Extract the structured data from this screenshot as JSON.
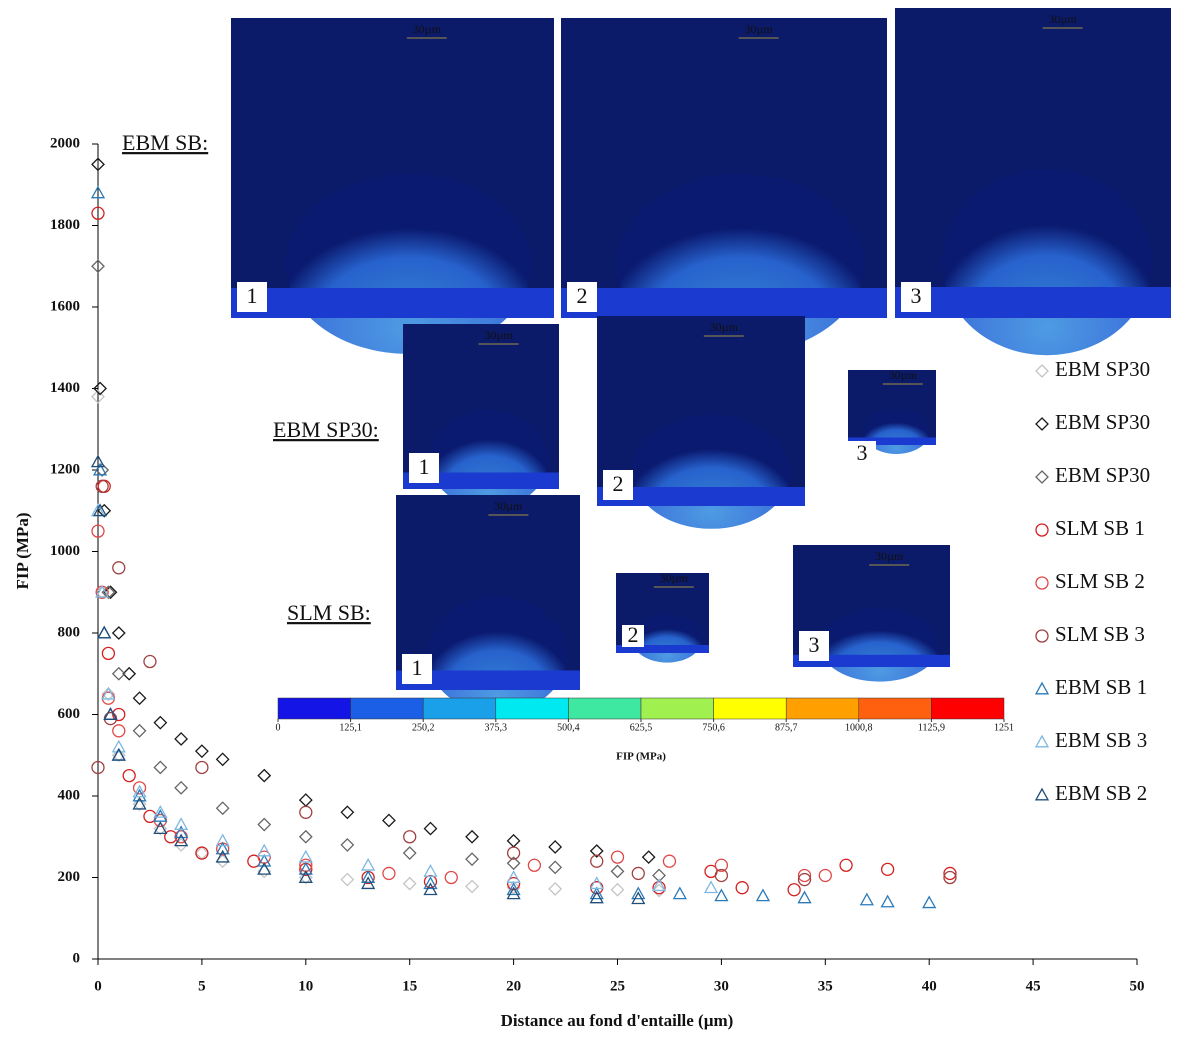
{
  "chart_data": {
    "type": "scatter",
    "xlabel": "Distance au fond d'entaille (µm)",
    "ylabel": "FIP (MPa)",
    "xlim": [
      0,
      50
    ],
    "ylim": [
      0,
      2000
    ],
    "xticks": [
      0,
      5,
      10,
      15,
      20,
      25,
      30,
      35,
      40,
      45,
      50
    ],
    "yticks": [
      0,
      200,
      400,
      600,
      800,
      1000,
      1200,
      1400,
      1600,
      1800,
      2000
    ],
    "legend": "right",
    "series": [
      {
        "name": "EBM SP30",
        "color": "#c4c4c4",
        "marker": "diamond",
        "x": [
          0,
          0.2,
          0.5,
          1,
          2,
          3,
          4,
          5,
          6,
          8,
          10,
          12,
          15,
          18,
          20,
          22,
          25,
          27
        ],
        "values": [
          1380,
          900,
          650,
          500,
          380,
          320,
          280,
          260,
          240,
          215,
          200,
          195,
          185,
          178,
          175,
          172,
          170,
          168
        ]
      },
      {
        "name": "EBM SP30",
        "color": "#1a1a1a",
        "marker": "diamond",
        "x": [
          0,
          0.1,
          0.3,
          0.6,
          1,
          1.5,
          2,
          3,
          4,
          5,
          6,
          8,
          10,
          12,
          14,
          16,
          18,
          20,
          22,
          24,
          26.5
        ],
        "values": [
          1950,
          1400,
          1100,
          900,
          800,
          700,
          640,
          580,
          540,
          510,
          490,
          450,
          390,
          360,
          340,
          320,
          300,
          290,
          275,
          265,
          250
        ]
      },
      {
        "name": "EBM SP30",
        "color": "#666666",
        "marker": "diamond",
        "x": [
          0,
          0.2,
          0.5,
          1,
          2,
          3,
          4,
          6,
          8,
          10,
          12,
          15,
          18,
          20,
          22,
          25,
          27
        ],
        "values": [
          1700,
          1200,
          900,
          700,
          560,
          470,
          420,
          370,
          330,
          300,
          280,
          260,
          245,
          235,
          225,
          215,
          205
        ]
      },
      {
        "name": "SLM SB 1",
        "color": "#d42020",
        "marker": "circle",
        "x": [
          0,
          0.3,
          0.5,
          1,
          1.5,
          2.5,
          3.5,
          5,
          7.5,
          10,
          13,
          16,
          20,
          24,
          27,
          29.5,
          31,
          33.5,
          36,
          38,
          41
        ],
        "values": [
          1830,
          1160,
          750,
          600,
          450,
          350,
          300,
          260,
          240,
          220,
          200,
          190,
          185,
          175,
          175,
          215,
          175,
          170,
          230,
          220,
          210
        ]
      },
      {
        "name": "SLM SB 2",
        "color": "#e04848",
        "marker": "circle",
        "x": [
          0,
          0.2,
          0.5,
          1,
          2,
          3,
          4,
          6,
          8,
          10,
          14,
          17,
          21,
          25,
          27.5,
          30,
          34,
          35
        ],
        "values": [
          1050,
          900,
          640,
          560,
          420,
          340,
          300,
          270,
          250,
          230,
          210,
          200,
          230,
          250,
          240,
          230,
          205,
          205
        ]
      },
      {
        "name": "SLM SB 3",
        "color": "#a04040",
        "marker": "circle",
        "x": [
          0,
          0.2,
          0.6,
          1,
          2.5,
          5,
          10,
          15,
          20,
          24,
          26,
          30,
          34,
          41
        ],
        "values": [
          470,
          1160,
          590,
          960,
          730,
          470,
          360,
          300,
          260,
          240,
          210,
          205,
          195,
          200
        ]
      },
      {
        "name": "EBM SB 1",
        "color": "#2a7ab8",
        "marker": "triangle",
        "x": [
          0,
          0.1,
          0.3,
          0.6,
          1,
          2,
          3,
          4,
          6,
          8,
          10,
          13,
          16,
          20,
          24,
          26,
          28,
          30,
          32,
          34,
          37,
          38,
          40
        ],
        "values": [
          1880,
          1200,
          800,
          600,
          500,
          400,
          350,
          310,
          270,
          240,
          220,
          200,
          185,
          170,
          160,
          160,
          160,
          155,
          155,
          150,
          145,
          140,
          138
        ]
      },
      {
        "name": "EBM SB 3",
        "color": "#7fb8e0",
        "marker": "triangle",
        "x": [
          0,
          0.2,
          0.5,
          1,
          2,
          3,
          4,
          6,
          8,
          10,
          13,
          16,
          20,
          24,
          27,
          29.5
        ],
        "values": [
          1100,
          900,
          650,
          520,
          410,
          360,
          330,
          290,
          265,
          250,
          230,
          215,
          200,
          185,
          180,
          175
        ]
      },
      {
        "name": "EBM SB 2",
        "color": "#1f4e79",
        "marker": "triangle",
        "x": [
          0,
          0.1,
          0.3,
          0.6,
          1,
          2,
          3,
          4,
          6,
          8,
          10,
          13,
          16,
          20,
          24,
          26
        ],
        "values": [
          1220,
          1100,
          800,
          600,
          500,
          380,
          320,
          290,
          250,
          220,
          200,
          185,
          170,
          160,
          150,
          148
        ]
      }
    ],
    "colorbar": {
      "title": "FIP (MPa)",
      "colors": [
        "#1414e6",
        "#1a5fe6",
        "#1aa0e8",
        "#00e8f0",
        "#3ee8a0",
        "#a0f050",
        "#ffff00",
        "#ffa000",
        "#ff6010",
        "#ff0000"
      ],
      "ticks": [
        0,
        {
          "value": 125.1,
          "label": "125,1"
        },
        {
          "value": 250.2,
          "label": "250,2"
        },
        {
          "value": 375.3,
          "label": "375,3"
        },
        {
          "value": 500.4,
          "label": "500,4"
        },
        {
          "value": 625.5,
          "label": "625,5"
        },
        {
          "value": 750.6,
          "label": "750,6"
        },
        {
          "value": 875.7,
          "label": "875,7"
        },
        {
          "value": 1000.8,
          "label": "1000,8"
        },
        {
          "value": 1125.9,
          "label": "1125,9"
        },
        1251
      ]
    }
  },
  "insets": [
    {
      "label": "EBM SB:",
      "panels": [
        {
          "number": "1",
          "scale": "30µm"
        },
        {
          "number": "2",
          "scale": "30µm"
        },
        {
          "number": "3",
          "scale": "30µm"
        }
      ]
    },
    {
      "label": "EBM SP30:",
      "panels": [
        {
          "number": "1",
          "scale": "30µm"
        },
        {
          "number": "2",
          "scale": "30µm"
        },
        {
          "number": "3",
          "scale": "30µm"
        }
      ]
    },
    {
      "label": "SLM SB:",
      "panels": [
        {
          "number": "1",
          "scale": "30µm"
        },
        {
          "number": "2",
          "scale": "30µm"
        },
        {
          "number": "3",
          "scale": "30µm"
        }
      ]
    }
  ]
}
